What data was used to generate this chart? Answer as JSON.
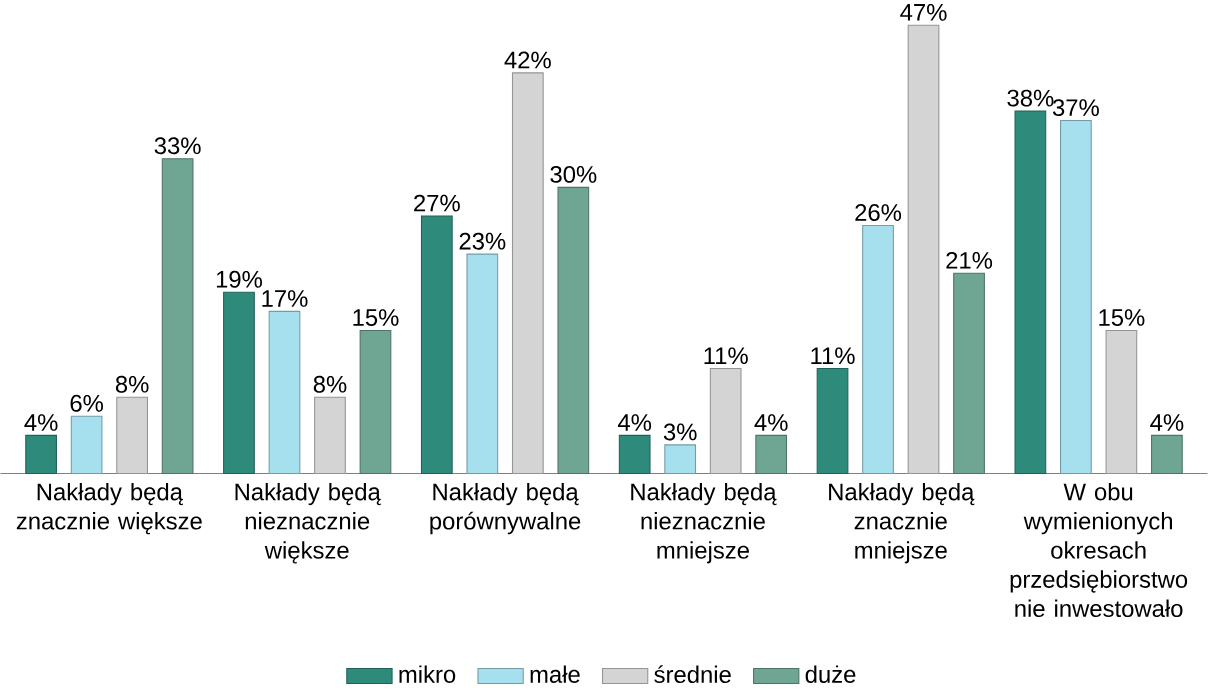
{
  "chart_data": {
    "type": "bar",
    "categories": [
      "Nakłady będą znacznie większe",
      "Nakłady będą nieznacznie większe",
      "Nakłady będą porównywalne",
      "Nakłady będą nieznacznie mniejsze",
      "Nakłady będą znacznie mniejsze",
      "W obu wymienionych okresach przedsiębiorstwo nie inwestowało"
    ],
    "series": [
      {
        "name": "mikro",
        "color": "#2e8b7c",
        "values": [
          4,
          19,
          27,
          4,
          11,
          38
        ],
        "value_labels": [
          "4%",
          "19%",
          "27%",
          "4%",
          "11%",
          "38%"
        ]
      },
      {
        "name": "małe",
        "color": "#a6dfee",
        "values": [
          6,
          17,
          23,
          3,
          26,
          37
        ],
        "value_labels": [
          "6%",
          "17%",
          "23%",
          "3%",
          "26%",
          "37%"
        ]
      },
      {
        "name": "średnie",
        "color": "#d4d4d4",
        "values": [
          8,
          8,
          42,
          11,
          47,
          15
        ],
        "value_labels": [
          "8%",
          "8%",
          "42%",
          "11%",
          "47%",
          "15%"
        ]
      },
      {
        "name": "duże",
        "color": "#6fa593",
        "values": [
          33,
          15,
          30,
          4,
          21,
          4
        ],
        "value_labels": [
          "33%",
          "15%",
          "30%",
          "4%",
          "21%",
          "4%"
        ]
      }
    ],
    "legend": "bottom"
  }
}
